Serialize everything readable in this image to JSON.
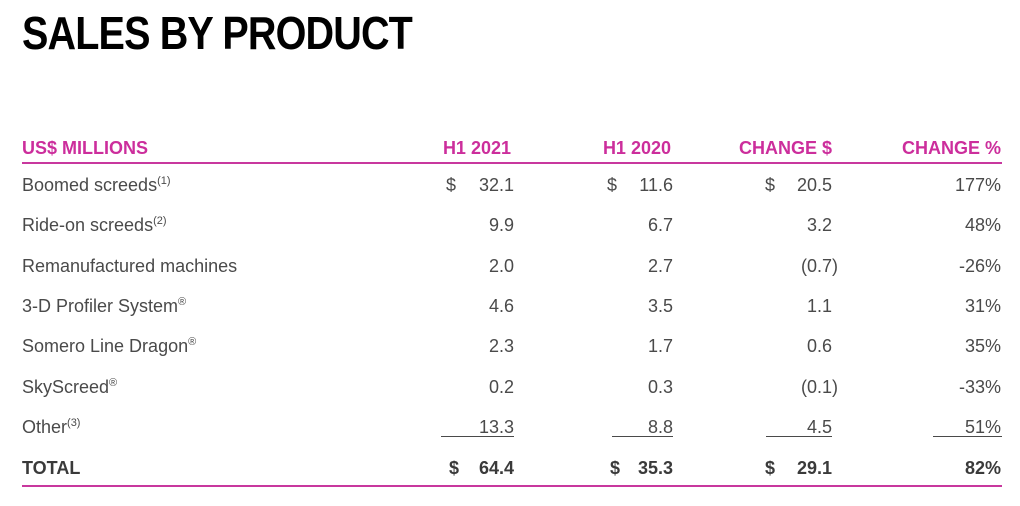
{
  "title": "SALES BY PRODUCT",
  "columns": [
    "US$ MILLIONS",
    "H1 2021",
    "H1 2020",
    "CHANGE $",
    "CHANGE %"
  ],
  "rows": [
    {
      "label": "Boomed screeds",
      "note": "(1)",
      "currency": "$",
      "h1_2021": "32.1",
      "h1_2020": "11.6",
      "change_usd": "20.5",
      "change_pct": "177%"
    },
    {
      "label": "Ride-on screeds",
      "note": "(2)",
      "h1_2021": "9.9",
      "h1_2020": "6.7",
      "change_usd": "3.2",
      "change_pct": "48%"
    },
    {
      "label": "Remanufactured machines",
      "note": "",
      "h1_2021": "2.0",
      "h1_2020": "2.7",
      "change_usd": "(0.7)",
      "change_pct": "-26%"
    },
    {
      "label": "3-D Profiler System",
      "note": "®",
      "h1_2021": "4.6",
      "h1_2020": "3.5",
      "change_usd": "1.1",
      "change_pct": "31%"
    },
    {
      "label": "Somero Line Dragon",
      "note": "®",
      "h1_2021": "2.3",
      "h1_2020": "1.7",
      "change_usd": "0.6",
      "change_pct": "35%"
    },
    {
      "label": "SkyScreed",
      "note": "®",
      "h1_2021": "0.2",
      "h1_2020": "0.3",
      "change_usd": "(0.1)",
      "change_pct": "-33%"
    },
    {
      "label": "Other",
      "note": "(3)",
      "h1_2021": "13.3",
      "h1_2020": "8.8",
      "change_usd": "4.5",
      "change_pct": "51%"
    }
  ],
  "total": {
    "label": "TOTAL",
    "currency": "$",
    "h1_2021": "64.4",
    "h1_2020": "35.3",
    "change_usd": "29.1",
    "change_pct": "82%"
  },
  "colors": {
    "accent": "#c8389e",
    "header_text": "#cc2e9c",
    "title": "#000000",
    "body_text": "#4a4a4a"
  }
}
